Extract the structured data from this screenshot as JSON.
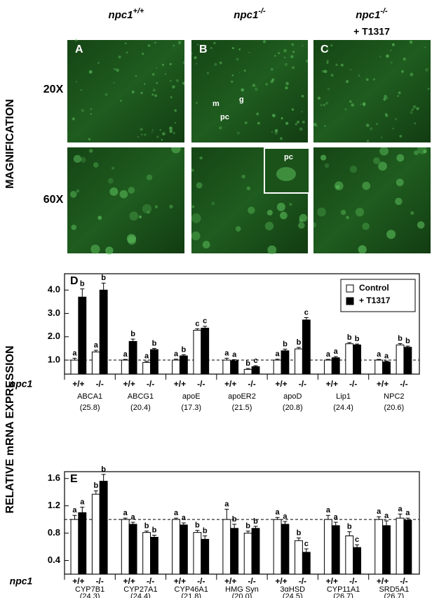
{
  "figure": {
    "columns": [
      {
        "gene": "npc1",
        "genotype": "+/+"
      },
      {
        "gene": "npc1",
        "genotype": "-/-"
      },
      {
        "gene": "npc1",
        "genotype": "-/-",
        "treatment": "+ T1317"
      }
    ],
    "panels": [
      "A",
      "B",
      "C"
    ],
    "row_axis_label": "MAGNIFICATION",
    "rows": [
      "20X",
      "60X"
    ],
    "annotations": {
      "m": "m",
      "g": "g",
      "pc": "pc",
      "inset_pc": "pc"
    },
    "y_axis_label": "RELATIVE mRNA EXPRESSION"
  },
  "chart_data": [
    {
      "type": "bar",
      "panel": "D",
      "categories": [
        "ABCA1",
        "ABCG1",
        "apoE",
        "apoER2",
        "apoD",
        "Lip1",
        "NPC2"
      ],
      "ct_values": [
        "(25.8)",
        "(20.4)",
        "(17.3)",
        "(21.5)",
        "(20.8)",
        "(24.4)",
        "(20.6)"
      ],
      "genotype_axis_label": "npc1",
      "genotypes": [
        "+/+",
        "-/-"
      ],
      "ylim": [
        0.4,
        4.7
      ],
      "yticks": [
        {
          "value": 1,
          "label": "1.0"
        },
        {
          "value": 2,
          "label": "2.0"
        },
        {
          "value": 3,
          "label": "3.0"
        },
        {
          "value": 4,
          "label": "4.0"
        }
      ],
      "reference_line": 1,
      "legend": "top-right",
      "series": [
        {
          "name": "Control",
          "color": "#ffffff",
          "values": [
            [
              1.0,
              1.35
            ],
            [
              1.0,
              0.9
            ],
            [
              1.0,
              2.28
            ],
            [
              1.0,
              0.6
            ],
            [
              1.0,
              1.48
            ],
            [
              1.0,
              1.7
            ],
            [
              1.0,
              1.65
            ]
          ],
          "errors": [
            [
              0.08,
              0.07
            ],
            [
              0.03,
              0.05
            ],
            [
              0.04,
              0.06
            ],
            [
              0.08,
              0.04
            ],
            [
              0.04,
              0.06
            ],
            [
              0.03,
              0.05
            ],
            [
              0.03,
              0.06
            ]
          ],
          "letters": [
            [
              "a",
              "a"
            ],
            [
              "a",
              "a"
            ],
            [
              "a",
              "c"
            ],
            [
              "a",
              "b"
            ],
            [
              "a",
              "b"
            ],
            [
              "a",
              "b"
            ],
            [
              "a",
              "b"
            ]
          ]
        },
        {
          "name": "+ T1317",
          "color": "#000000",
          "values": [
            [
              3.7,
              4.0
            ],
            [
              1.8,
              1.45
            ],
            [
              1.18,
              2.37
            ],
            [
              0.97,
              0.72
            ],
            [
              1.4,
              2.72
            ],
            [
              1.1,
              1.65
            ],
            [
              0.92,
              1.55
            ]
          ],
          "errors": [
            [
              0.35,
              0.3
            ],
            [
              0.1,
              0.05
            ],
            [
              0.05,
              0.08
            ],
            [
              0.05,
              0.04
            ],
            [
              0.07,
              0.1
            ],
            [
              0.05,
              0.04
            ],
            [
              0.04,
              0.05
            ]
          ],
          "letters": [
            [
              "b",
              "b"
            ],
            [
              "b",
              "b"
            ],
            [
              "b",
              "c"
            ],
            [
              "a",
              "c"
            ],
            [
              "b",
              "c"
            ],
            [
              "a",
              "b"
            ],
            [
              "a",
              "b"
            ]
          ]
        }
      ]
    },
    {
      "type": "bar",
      "panel": "E",
      "categories": [
        "CYP7B1",
        "CYP27A1",
        "CYP46A1",
        "HMG Syn",
        "3αHSD",
        "CYP11A1",
        "SRD5A1"
      ],
      "ct_values": [
        "(24.3)",
        "(24.4)",
        "(21.8)",
        "(20.0)",
        "(24.5)",
        "(26.7)",
        "(26.7)"
      ],
      "genotype_axis_label": "npc1",
      "genotypes": [
        "+/+",
        "-/-"
      ],
      "ylim": [
        0.2,
        1.7
      ],
      "yticks": [
        0.4,
        0.8,
        1.2,
        1.6
      ],
      "reference_line": 1,
      "legend": false,
      "series": [
        {
          "name": "Control",
          "color": "#ffffff",
          "values": [
            [
              1.0,
              1.37
            ],
            [
              1.0,
              0.81
            ],
            [
              1.0,
              0.81
            ],
            [
              1.0,
              0.8
            ],
            [
              1.0,
              0.69
            ],
            [
              1.0,
              0.76
            ],
            [
              1.0,
              1.02
            ]
          ],
          "errors": [
            [
              0.06,
              0.05
            ],
            [
              0.02,
              0.02
            ],
            [
              0.02,
              0.03
            ],
            [
              0.15,
              0.03
            ],
            [
              0.03,
              0.04
            ],
            [
              0.06,
              0.06
            ],
            [
              0.04,
              0.06
            ]
          ],
          "letters": [
            [
              "a",
              "b"
            ],
            [
              "a",
              "b"
            ],
            [
              "a",
              "b"
            ],
            [
              "a",
              "b"
            ],
            [
              "a",
              "b"
            ],
            [
              "a",
              "b"
            ],
            [
              "a",
              "a"
            ]
          ]
        },
        {
          "name": "+ T1317",
          "color": "#000000",
          "values": [
            [
              1.1,
              1.56
            ],
            [
              0.93,
              0.74
            ],
            [
              0.92,
              0.71
            ],
            [
              0.87,
              0.87
            ],
            [
              0.93,
              0.52
            ],
            [
              0.91,
              0.59
            ],
            [
              0.91,
              0.99
            ]
          ],
          "errors": [
            [
              0.08,
              0.1
            ],
            [
              0.03,
              0.03
            ],
            [
              0.03,
              0.05
            ],
            [
              0.06,
              0.03
            ],
            [
              0.04,
              0.05
            ],
            [
              0.05,
              0.04
            ],
            [
              0.07,
              0.03
            ]
          ],
          "letters": [
            [
              "a",
              "b"
            ],
            [
              "a",
              "b"
            ],
            [
              "a",
              "b"
            ],
            [
              "b",
              "b"
            ],
            [
              "a",
              "c"
            ],
            [
              "a",
              "c"
            ],
            [
              "a",
              "a"
            ]
          ]
        }
      ]
    }
  ]
}
